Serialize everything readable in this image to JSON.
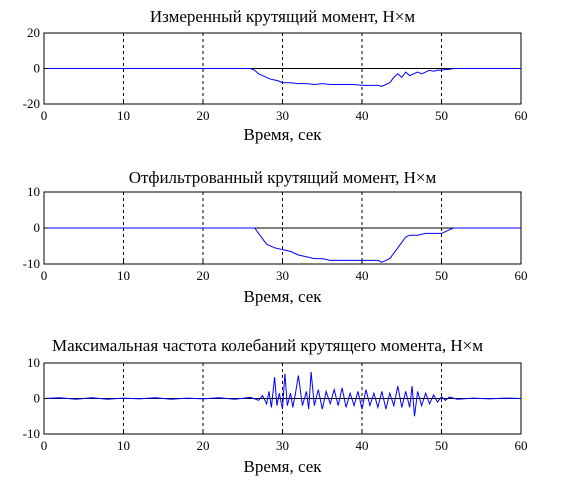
{
  "chart_data": [
    {
      "type": "line",
      "title": "Измеренный крутящий момент, Н×м",
      "xlabel": "Время, сек",
      "ylabel": "",
      "xlim": [
        0,
        60
      ],
      "ylim": [
        -20,
        20
      ],
      "xticks": [
        0,
        10,
        20,
        30,
        40,
        50,
        60
      ],
      "yticks": [
        -20,
        0,
        20
      ],
      "grid": "dashed-x",
      "line_color": "#0000ff",
      "series": [
        {
          "x": [
            0,
            26,
            26.5,
            27,
            27.5,
            28,
            28.5,
            29,
            29.5,
            30,
            31,
            32,
            33,
            34,
            35,
            36,
            37,
            38,
            39,
            40,
            41,
            42,
            42.5,
            43,
            43.5,
            44,
            44.5,
            45,
            45.5,
            46,
            46.5,
            47,
            47.5,
            48,
            48.5,
            49,
            49.5,
            50,
            50.5,
            51,
            51.5,
            52,
            60
          ],
          "y": [
            0,
            0,
            -1,
            -3,
            -4,
            -5,
            -6,
            -6.5,
            -7,
            -8,
            -8,
            -8.5,
            -8.5,
            -9,
            -8.5,
            -9,
            -9,
            -9,
            -9,
            -9.5,
            -9.5,
            -9.5,
            -10,
            -9,
            -8,
            -5,
            -3,
            -5,
            -2,
            -4,
            -3,
            -2,
            -3,
            -2,
            -1,
            -1.5,
            -1,
            -1,
            -0.5,
            -0.5,
            0,
            0,
            0
          ]
        }
      ]
    },
    {
      "type": "line",
      "title": "Отфильтрованный крутящий момент, Н×м",
      "xlabel": "Время, сек",
      "ylabel": "",
      "xlim": [
        0,
        60
      ],
      "ylim": [
        -10,
        10
      ],
      "xticks": [
        0,
        10,
        20,
        30,
        40,
        50,
        60
      ],
      "yticks": [
        -10,
        0,
        10
      ],
      "grid": "dashed-x",
      "line_color": "#0000ff",
      "series": [
        {
          "x": [
            0,
            26.5,
            27,
            27.5,
            28,
            29,
            30,
            31,
            32,
            33,
            34,
            35,
            36,
            38,
            40,
            41,
            42,
            42.5,
            43,
            43.5,
            44,
            44.5,
            45,
            45.5,
            46,
            47,
            48,
            49,
            50,
            50.5,
            51,
            51.5,
            52,
            60
          ],
          "y": [
            0,
            0,
            -1.5,
            -3,
            -4.5,
            -5.5,
            -6,
            -6.5,
            -7.5,
            -8,
            -8.5,
            -8.5,
            -9,
            -9,
            -9,
            -9,
            -9,
            -9.5,
            -9,
            -8.5,
            -7,
            -5.5,
            -4,
            -2.5,
            -2,
            -2,
            -1.5,
            -1.5,
            -1.5,
            -1,
            -0.5,
            0,
            0,
            0
          ]
        }
      ]
    },
    {
      "type": "line",
      "title": "Максимальная частота колебаний крутящего момента, Н×м",
      "xlabel": "Время, сек",
      "ylabel": "",
      "xlim": [
        0,
        60
      ],
      "ylim": [
        -10,
        10
      ],
      "xticks": [
        0,
        10,
        20,
        30,
        40,
        50,
        60
      ],
      "yticks": [
        -10,
        0,
        10
      ],
      "grid": "dashed-x",
      "line_color": "#0000ff",
      "series": [
        {
          "x": [
            0,
            2,
            4,
            6,
            8,
            10,
            12,
            14,
            16,
            18,
            20,
            22,
            24,
            26,
            27,
            27.5,
            28,
            28.3,
            28.6,
            29,
            29.3,
            29.6,
            30,
            30.3,
            30.6,
            31,
            31.3,
            31.6,
            32,
            32.5,
            33,
            33.3,
            33.6,
            34,
            34.5,
            35,
            35.5,
            36,
            36.5,
            37,
            37.5,
            38,
            38.5,
            39,
            39.5,
            40,
            40.5,
            41,
            41.5,
            42,
            42.5,
            43,
            43.5,
            44,
            44.5,
            45,
            45.5,
            46,
            46.3,
            46.6,
            47,
            47.5,
            48,
            48.5,
            49,
            49.5,
            50,
            50.5,
            51,
            52,
            54,
            56,
            58,
            60
          ],
          "y": [
            0,
            0.2,
            -0.2,
            0.2,
            -0.2,
            0.1,
            -0.1,
            0.2,
            -0.2,
            0.1,
            -0.1,
            0.2,
            -0.2,
            0.3,
            -0.5,
            0.8,
            -1.5,
            2,
            -2.5,
            6,
            -2,
            1.5,
            -3,
            7,
            -2,
            1.5,
            -2.5,
            1,
            6.5,
            -2,
            2,
            -3,
            7.5,
            -2,
            2.5,
            -3,
            2,
            -1.5,
            2.5,
            -2,
            3,
            -2.5,
            1.5,
            -2,
            2,
            -3,
            2.5,
            -2,
            1.5,
            -2.5,
            2,
            -3,
            1.5,
            -2,
            3.5,
            -2.5,
            2,
            -2.5,
            3.5,
            -5,
            2,
            -2,
            1.5,
            -1.5,
            1,
            -1,
            0.5,
            -0.5,
            0.4,
            -0.2,
            0.1,
            -0.1,
            0.1,
            0
          ]
        }
      ]
    }
  ]
}
